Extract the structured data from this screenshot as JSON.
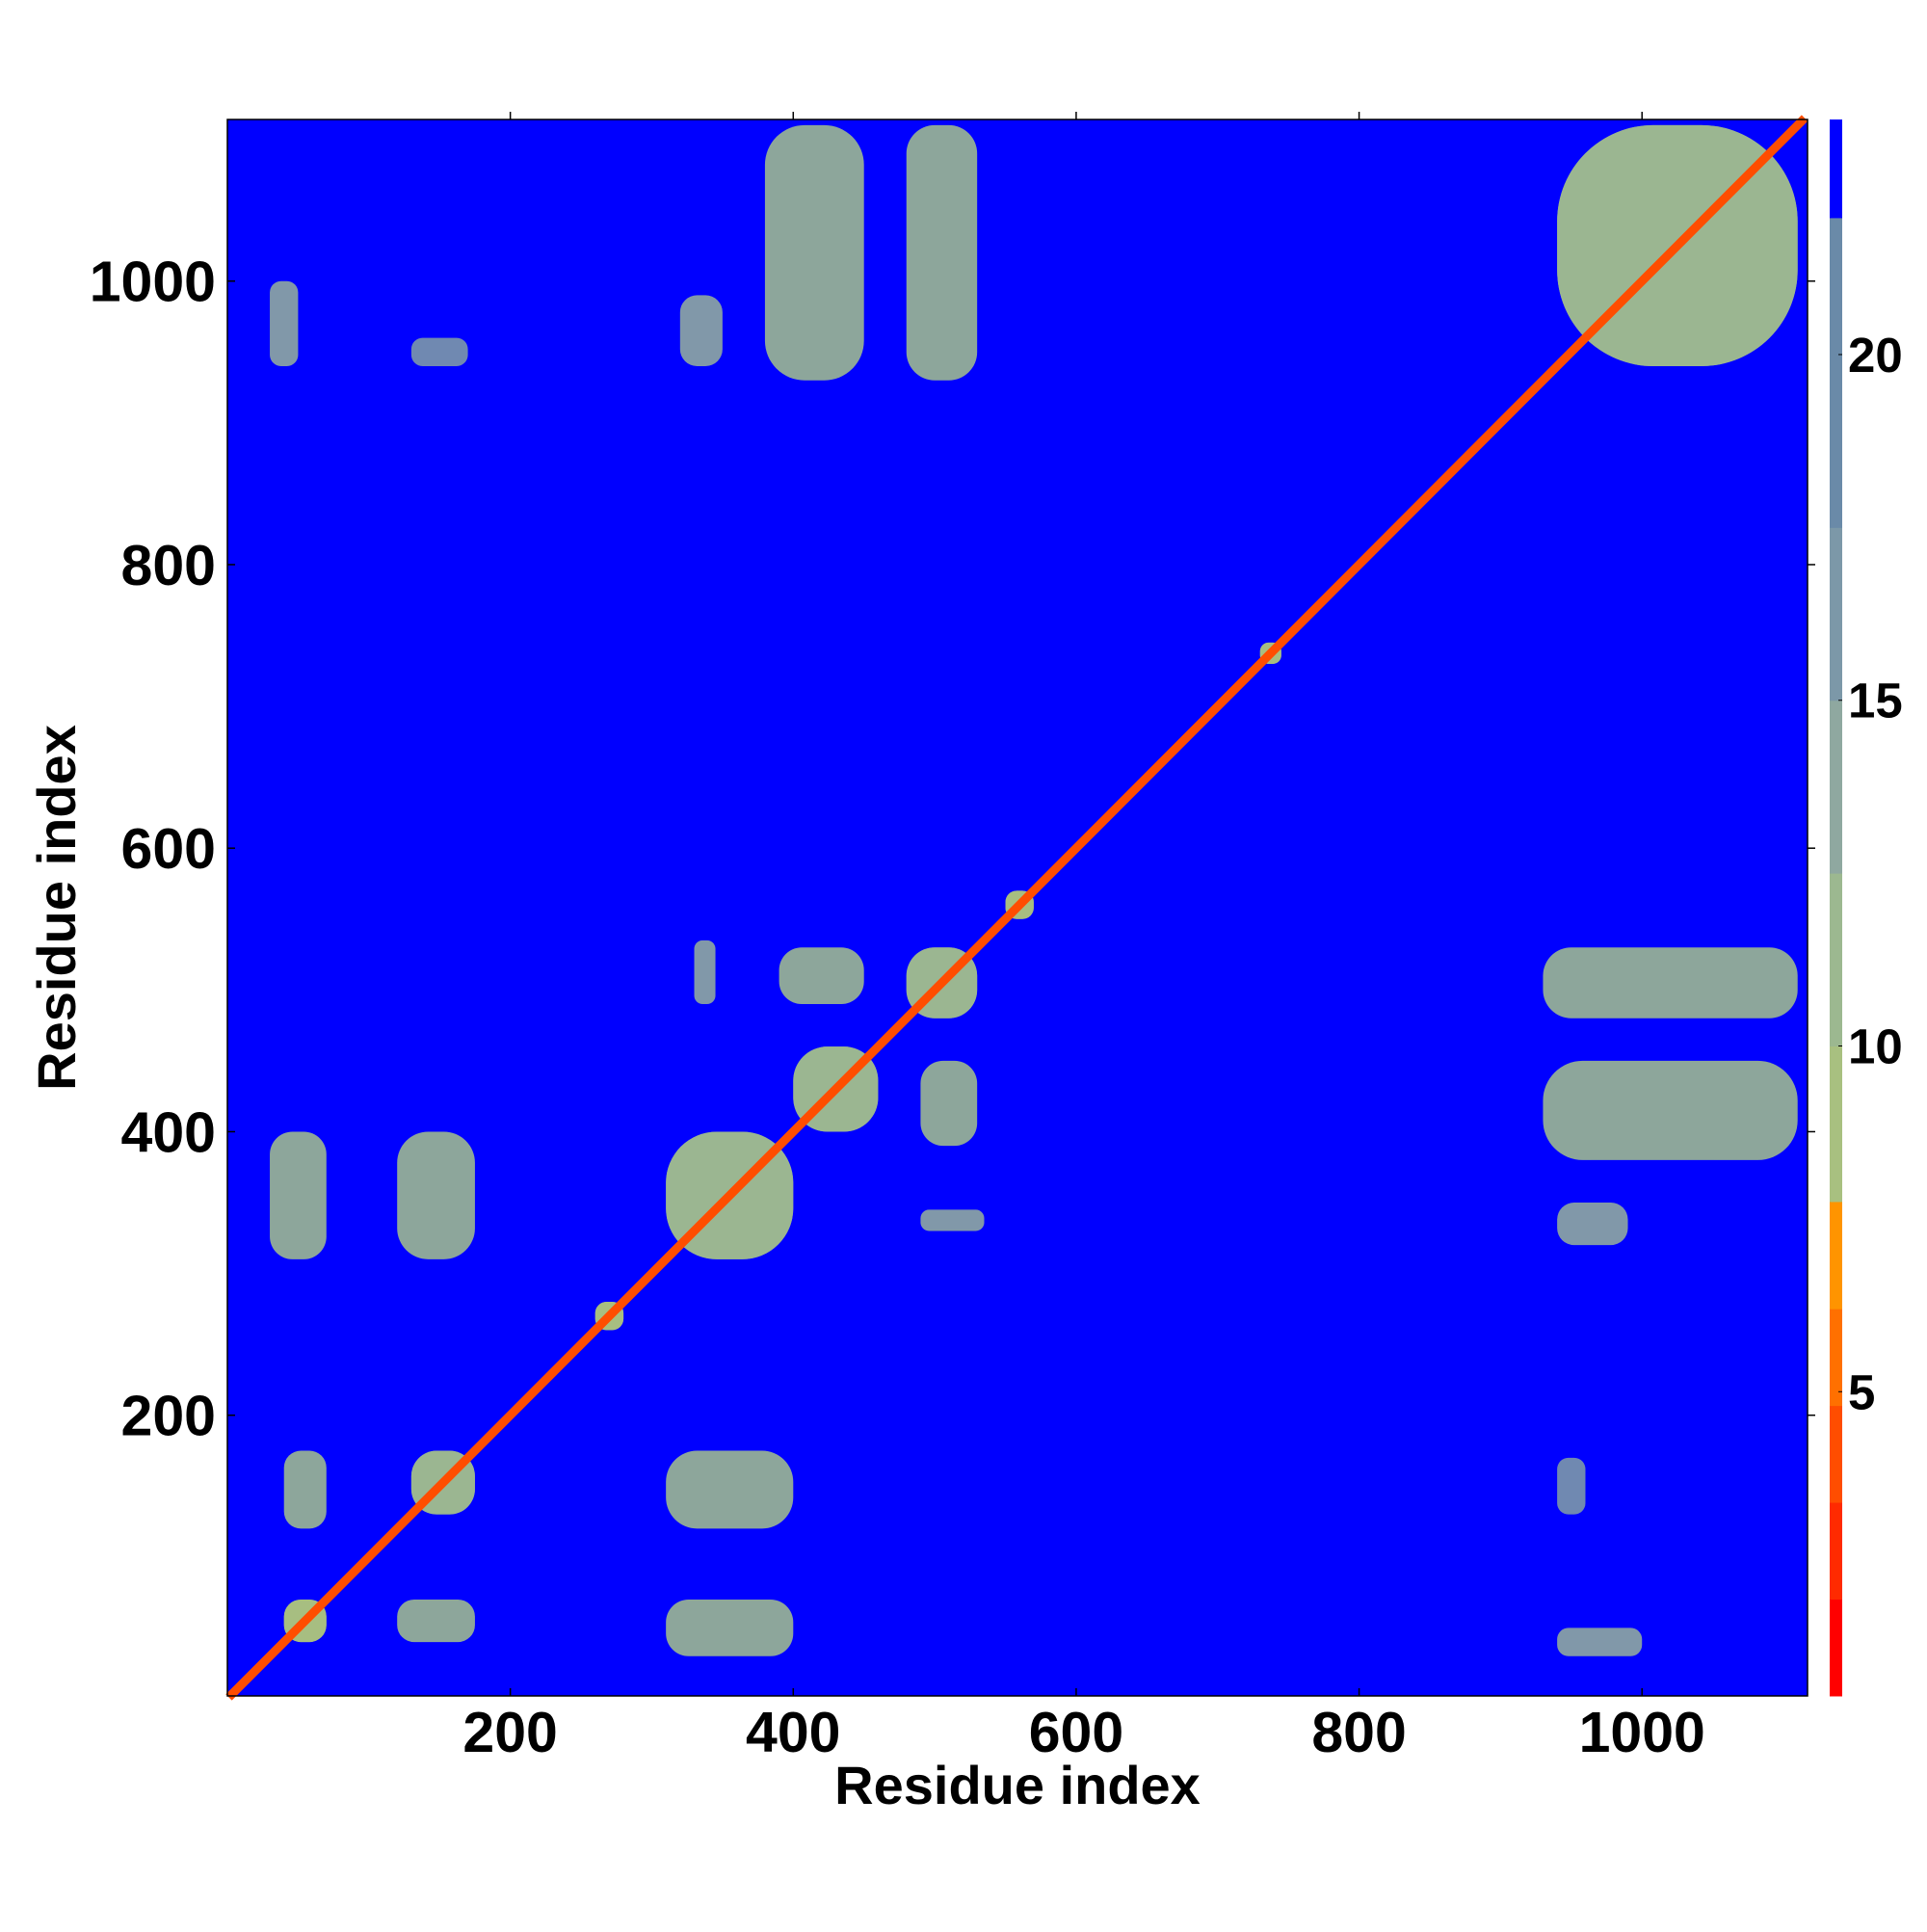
{
  "chart_data": {
    "type": "heatmap",
    "xlabel": "Residue index",
    "ylabel": "Residue index",
    "xlim": [
      0,
      1117
    ],
    "ylim": [
      2,
      1114
    ],
    "xticks": [
      200,
      400,
      600,
      800,
      1000
    ],
    "yticks": [
      200,
      400,
      600,
      800,
      1000
    ],
    "symmetric": true,
    "background": 23.4,
    "diagonal": {
      "x": [
        1,
        1115
      ],
      "value": 3.8
    },
    "patches": [
      {
        "x": [
          120,
          175
        ],
        "y": [
          40,
          70
        ],
        "value": 12
      },
      {
        "x": [
          310,
          400
        ],
        "y": [
          30,
          70
        ],
        "value": 12
      },
      {
        "x": [
          310,
          400
        ],
        "y": [
          120,
          175
        ],
        "value": 12
      },
      {
        "x": [
          130,
          175
        ],
        "y": [
          130,
          175
        ],
        "value": 12
      },
      {
        "x": [
          310,
          400
        ],
        "y": [
          310,
          400
        ],
        "value": 12
      },
      {
        "x": [
          400,
          460
        ],
        "y": [
          400,
          460
        ],
        "value": 12
      },
      {
        "x": [
          480,
          530
        ],
        "y": [
          480,
          530
        ],
        "value": 12
      },
      {
        "x": [
          490,
          535
        ],
        "y": [
          330,
          345
        ],
        "value": 13
      },
      {
        "x": [
          490,
          530
        ],
        "y": [
          390,
          450
        ],
        "value": 12
      },
      {
        "x": [
          930,
          1110
        ],
        "y": [
          480,
          530
        ],
        "value": 12
      },
      {
        "x": [
          930,
          1110
        ],
        "y": [
          380,
          450
        ],
        "value": 12
      },
      {
        "x": [
          940,
          990
        ],
        "y": [
          320,
          350
        ],
        "value": 13
      },
      {
        "x": [
          940,
          1000
        ],
        "y": [
          30,
          50
        ],
        "value": 14
      },
      {
        "x": [
          940,
          960
        ],
        "y": [
          130,
          170
        ],
        "value": 16
      },
      {
        "x": [
          940,
          1110
        ],
        "y": [
          940,
          1110
        ],
        "value": 12
      },
      {
        "x": [
          550,
          570
        ],
        "y": [
          550,
          570
        ],
        "value": 8
      },
      {
        "x": [
          730,
          745
        ],
        "y": [
          730,
          745
        ],
        "value": 8
      },
      {
        "x": [
          260,
          280
        ],
        "y": [
          260,
          280
        ],
        "value": 8
      },
      {
        "x": [
          40,
          70
        ],
        "y": [
          40,
          70
        ],
        "value": 8
      }
    ],
    "colorbar": {
      "levels": [
        0.6,
        2.0,
        3.4,
        4.8,
        6.2,
        7.75,
        10.0,
        12.5,
        15.0,
        17.5,
        21.98,
        23.4
      ],
      "colors": [
        "#ff0000",
        "#ff2a00",
        "#ff4d00",
        "#ff7000",
        "#ff9400",
        "#a8c080",
        "#9cb890",
        "#8fa8a0",
        "#7c98a8",
        "#6a8aa8",
        "#0000ff"
      ],
      "ticks": [
        5,
        10,
        15,
        20
      ]
    }
  }
}
